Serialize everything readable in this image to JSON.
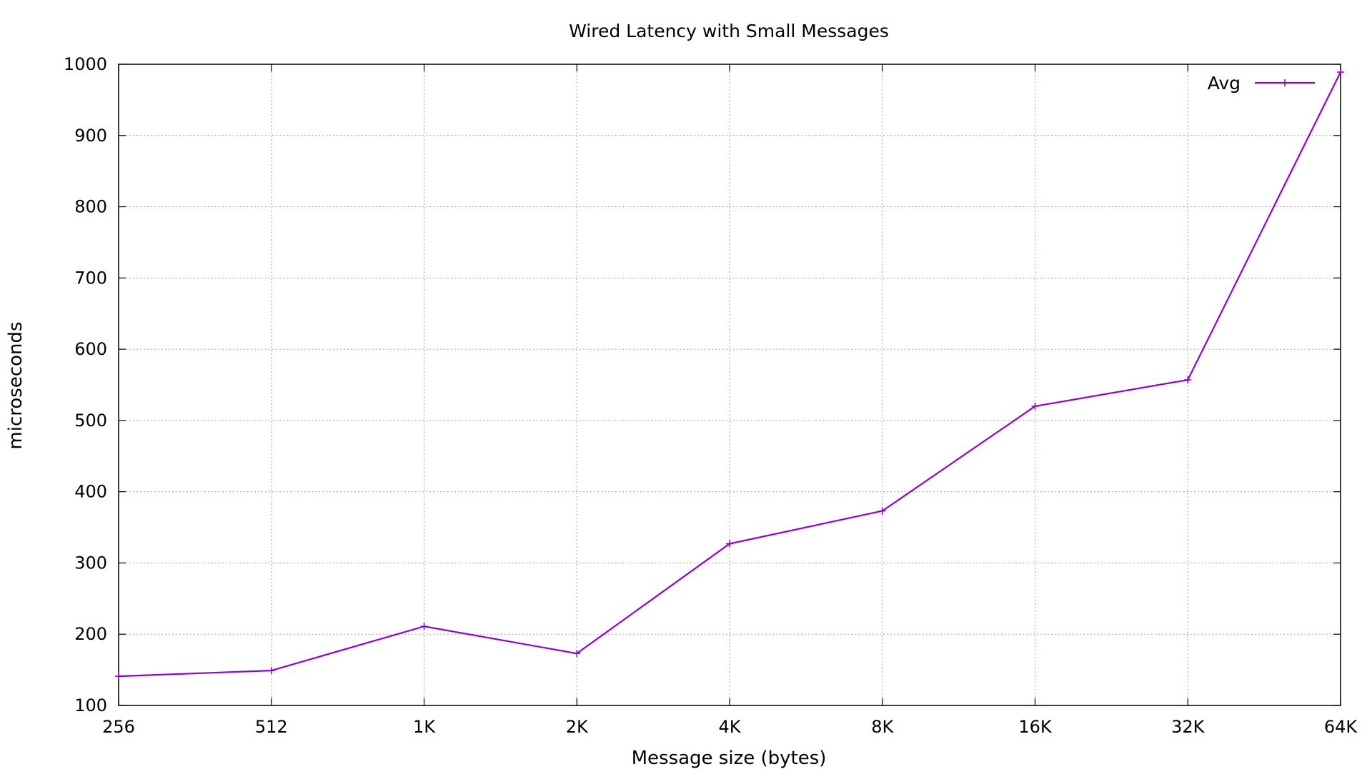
{
  "chart_data": {
    "type": "line",
    "title": "Wired Latency with Small Messages",
    "xlabel": "Message size (bytes)",
    "ylabel": "microseconds",
    "categories": [
      "256",
      "512",
      "1K",
      "2K",
      "4K",
      "8K",
      "16K",
      "32K",
      "64K"
    ],
    "series": [
      {
        "name": "Avg",
        "values": [
          141,
          149,
          211,
          173,
          327,
          373,
          520,
          557,
          989
        ]
      }
    ],
    "ylim": [
      100,
      1000
    ],
    "yticks": [
      "100",
      "200",
      "300",
      "400",
      "500",
      "600",
      "700",
      "800",
      "900",
      "1000"
    ],
    "grid": true,
    "legend_position": "top-right",
    "series_color": "#9400d3",
    "marker": "plus"
  }
}
